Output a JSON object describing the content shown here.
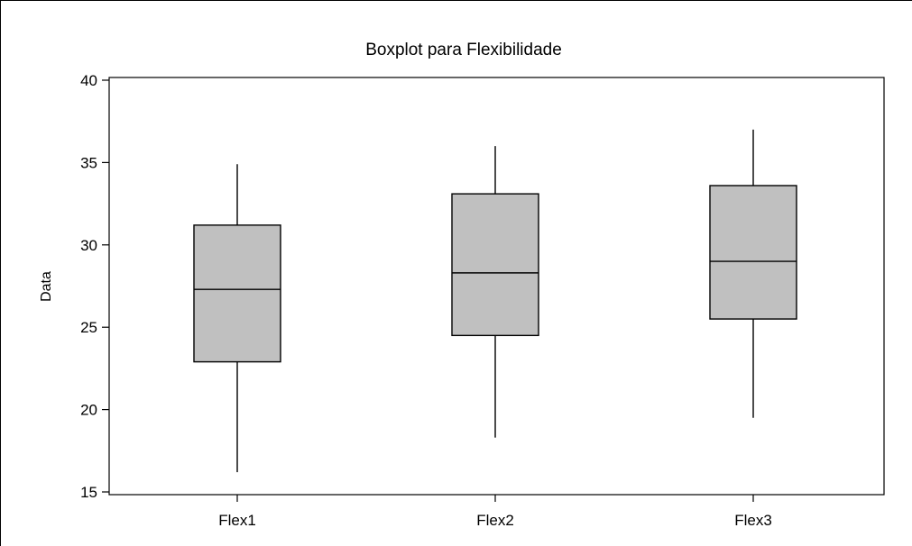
{
  "chart_data": {
    "type": "boxplot",
    "title": "Boxplot para Flexibilidade",
    "xlabel": "",
    "ylabel": "Data",
    "ylim": [
      15,
      40
    ],
    "yticks": [
      15,
      20,
      25,
      30,
      35,
      40
    ],
    "categories": [
      "Flex1",
      "Flex2",
      "Flex3"
    ],
    "boxes": [
      {
        "category": "Flex1",
        "min": 16.2,
        "q1": 22.9,
        "median": 27.3,
        "q3": 31.2,
        "max": 34.9
      },
      {
        "category": "Flex2",
        "min": 18.3,
        "q1": 24.5,
        "median": 28.3,
        "q3": 33.1,
        "max": 36.0
      },
      {
        "category": "Flex3",
        "min": 19.5,
        "q1": 25.5,
        "median": 29.0,
        "q3": 33.6,
        "max": 37.0
      }
    ],
    "box_fill": "#c0c0c0",
    "grid": false,
    "legend": "none"
  }
}
